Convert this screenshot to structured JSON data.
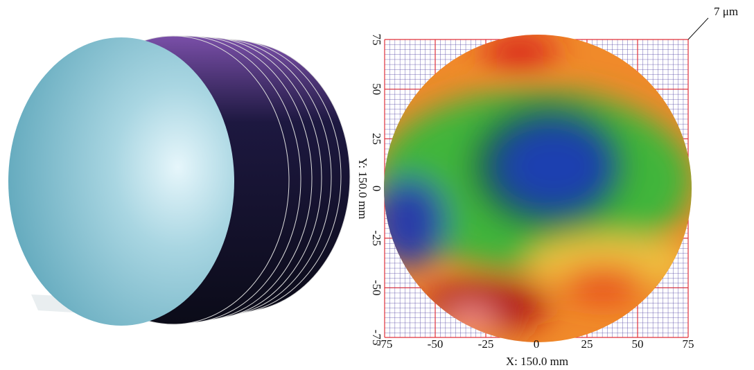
{
  "chart_data": {
    "type": "surface",
    "xlabel": "X: 150.0 mm",
    "ylabel": "Y: 150.0 mm",
    "annotation": "7 μm",
    "xlim": [
      -75,
      75
    ],
    "ylim": [
      -75,
      75
    ],
    "xticks": [
      -75,
      -50,
      -25,
      0,
      25,
      50,
      75
    ],
    "yticks": [
      -75,
      -50,
      -25,
      0,
      25,
      50,
      75
    ],
    "grid": true
  }
}
